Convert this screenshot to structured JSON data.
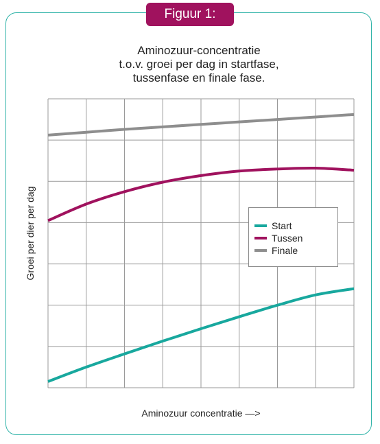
{
  "figure": {
    "badge_label": "Figuur 1:",
    "colors": {
      "frame": "#2fb3a8",
      "badge": "#a0125e",
      "grid": "#9a9a9a"
    }
  },
  "chart_data": {
    "type": "line",
    "title_lines": [
      "Aminozuur-concentratie",
      "t.o.v. groei per dag in startfase,",
      "tussenfase en finale fase."
    ],
    "xlabel": "Aminozuur concentratie —>",
    "ylabel": "Groei per dier per dag",
    "xlim": [
      0,
      8
    ],
    "ylim": [
      0,
      7
    ],
    "grid": true,
    "tick_labels": false,
    "legend_position": "right-middle",
    "series": [
      {
        "name": "Start",
        "color": "#18a89e",
        "x": [
          0,
          1,
          2,
          3,
          4,
          5,
          6,
          7,
          8
        ],
        "y": [
          0.15,
          0.5,
          0.82,
          1.13,
          1.43,
          1.72,
          2.0,
          2.25,
          2.4
        ]
      },
      {
        "name": "Tussen",
        "color": "#a0125e",
        "x": [
          0,
          1,
          2,
          3,
          4,
          5,
          6,
          7,
          8
        ],
        "y": [
          4.05,
          4.45,
          4.75,
          4.98,
          5.14,
          5.25,
          5.3,
          5.32,
          5.27
        ]
      },
      {
        "name": "Finale",
        "color": "#8e8e8e",
        "x": [
          0,
          1,
          2,
          3,
          4,
          5,
          6,
          7,
          8
        ],
        "y": [
          6.12,
          6.19,
          6.26,
          6.32,
          6.38,
          6.44,
          6.5,
          6.56,
          6.62
        ]
      }
    ]
  }
}
